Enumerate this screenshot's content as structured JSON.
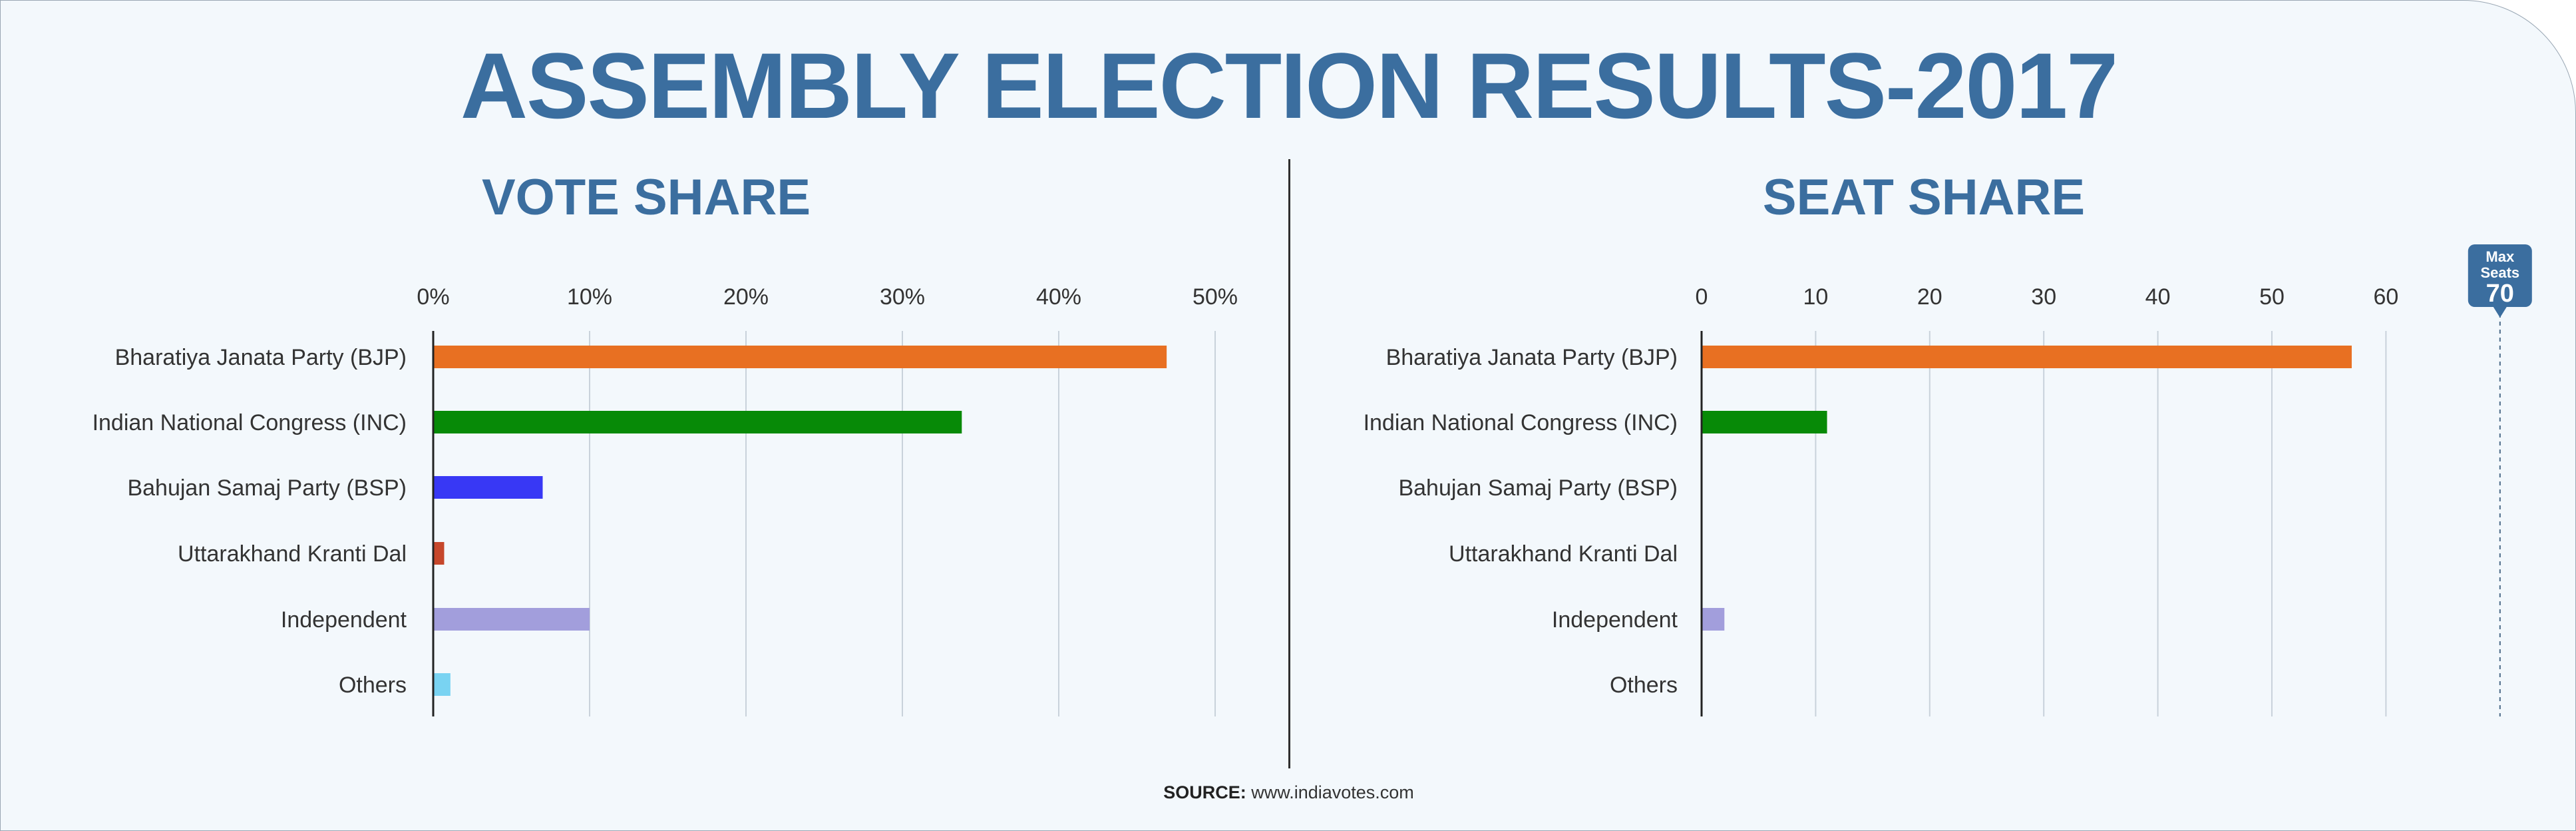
{
  "title": "ASSEMBLY ELECTION RESULTS-2017",
  "source": {
    "label": "SOURCE:",
    "text": " www.indiavotes.com"
  },
  "colors": {
    "title": "#3b6e9f",
    "grid": "#c9d2db",
    "axis": "#222222",
    "text": "#333333",
    "marker": "#3b6e9f"
  },
  "chart_data": [
    {
      "type": "bar",
      "orientation": "horizontal",
      "title": "VOTE SHARE",
      "categories": [
        "Bharatiya Janata Party (BJP)",
        "Indian National Congress (INC)",
        "Bahujan Samaj Party (BSP)",
        "Uttarakhand Kranti Dal",
        "Independent",
        "Others"
      ],
      "values": [
        46.9,
        33.8,
        7.0,
        0.7,
        10.0,
        1.1
      ],
      "bar_colors": [
        "#e87022",
        "#078a07",
        "#3838f5",
        "#c6472b",
        "#a29edc",
        "#79d3f2"
      ],
      "xlim": [
        0,
        50
      ],
      "xticks": [
        0,
        10,
        20,
        30,
        40,
        50
      ],
      "tick_labels": [
        "0%",
        "10%",
        "20%",
        "30%",
        "40%",
        "50%"
      ],
      "grid": true,
      "axis_position": "top"
    },
    {
      "type": "bar",
      "orientation": "horizontal",
      "title": "SEAT SHARE",
      "categories": [
        "Bharatiya Janata Party (BJP)",
        "Indian National Congress (INC)",
        "Bahujan Samaj Party (BSP)",
        "Uttarakhand Kranti Dal",
        "Independent",
        "Others"
      ],
      "values": [
        57,
        11,
        0,
        0,
        2,
        0
      ],
      "bar_colors": [
        "#e87022",
        "#078a07",
        "#3838f5",
        "#c6472b",
        "#a29edc",
        "#79d3f2"
      ],
      "xlim": [
        0,
        70
      ],
      "xticks": [
        0,
        10,
        20,
        30,
        40,
        50,
        60
      ],
      "tick_labels": [
        "0",
        "10",
        "20",
        "30",
        "40",
        "50",
        "60"
      ],
      "grid": true,
      "axis_position": "top",
      "max_marker": {
        "label_line1": "Max",
        "label_line2": "Seats",
        "value": 70,
        "value_label": "70"
      }
    }
  ]
}
